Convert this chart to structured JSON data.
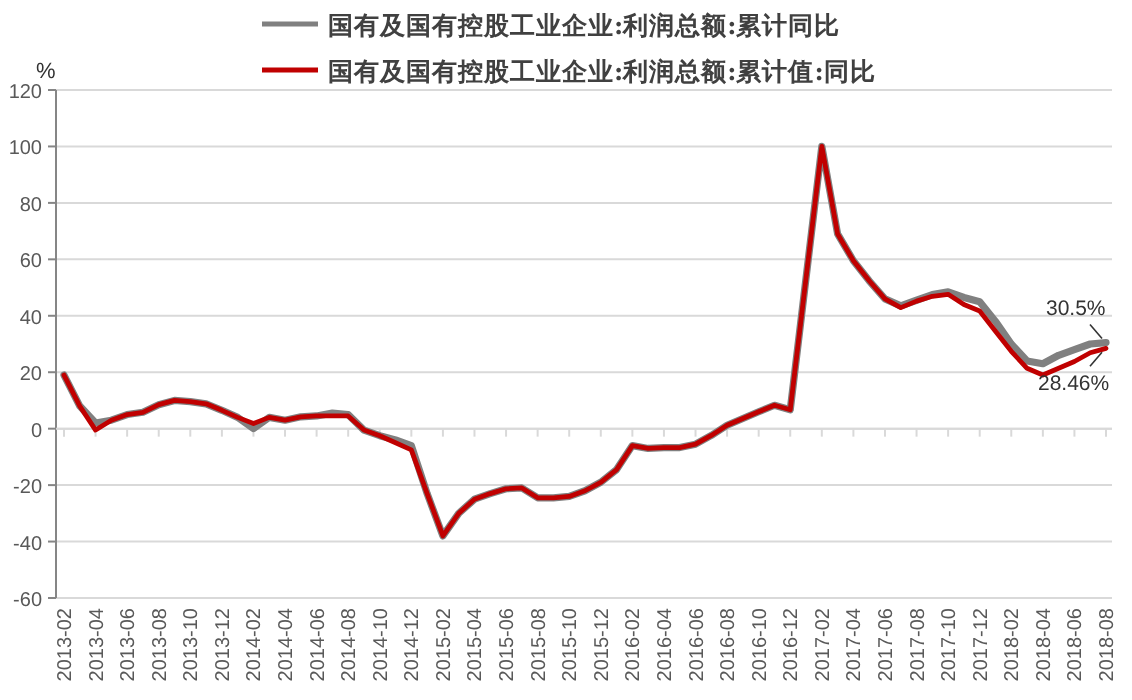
{
  "chart_data": {
    "type": "line",
    "ylabel": "%",
    "legend": "top",
    "grid": "y",
    "marker": "none",
    "line_style": "solid",
    "x": [
      "2013-02",
      "2013-03",
      "2013-04",
      "2013-05",
      "2013-06",
      "2013-07",
      "2013-08",
      "2013-09",
      "2013-10",
      "2013-11",
      "2013-12",
      "2014-01",
      "2014-02",
      "2014-03",
      "2014-04",
      "2014-05",
      "2014-06",
      "2014-07",
      "2014-08",
      "2014-09",
      "2014-10",
      "2014-11",
      "2014-12",
      "2015-01",
      "2015-02",
      "2015-03",
      "2015-04",
      "2015-05",
      "2015-06",
      "2015-07",
      "2015-08",
      "2015-09",
      "2015-10",
      "2015-11",
      "2015-12",
      "2016-01",
      "2016-02",
      "2016-03",
      "2016-04",
      "2016-05",
      "2016-06",
      "2016-07",
      "2016-08",
      "2016-09",
      "2016-10",
      "2016-11",
      "2016-12",
      "2017-02",
      "2017-03",
      "2017-04",
      "2017-05",
      "2017-06",
      "2017-07",
      "2017-08",
      "2017-09",
      "2017-10",
      "2017-11",
      "2017-12",
      "2018-01",
      "2018-02",
      "2018-03",
      "2018-04",
      "2018-05",
      "2018-06",
      "2018-07",
      "2018-08"
    ],
    "series": [
      {
        "name": "国有及国有控股工业企业:利润总额:累计同比",
        "color": "#808080",
        "values": [
          19,
          8,
          2,
          3,
          5,
          5.8,
          8.5,
          10,
          9.6,
          8.8,
          6.5,
          4,
          0,
          4,
          3,
          4.2,
          4.5,
          5.5,
          5,
          -0.5,
          -2.5,
          -4,
          -6,
          -23,
          -38,
          -30,
          -25,
          -23,
          -21.3,
          -21,
          -24.5,
          -24.5,
          -24,
          -22,
          -19,
          -14.5,
          -6,
          -7,
          -6.7,
          -6.7,
          -5.5,
          -2.4,
          1.2,
          3.6,
          6,
          8.3,
          6.7,
          100,
          69,
          59.5,
          52.4,
          46,
          43.5,
          45.5,
          47.5,
          48.5,
          46.5,
          45,
          38,
          30,
          24,
          23,
          26,
          28,
          30,
          30.5
        ]
      },
      {
        "name": "国有及国有控股工业企业:利润总额:累计值:同比",
        "color": "#c00000",
        "values": [
          19,
          8,
          -0.5,
          3,
          5,
          5.8,
          8.5,
          10,
          9.6,
          8.8,
          6.5,
          4,
          1.8,
          4,
          3,
          4.2,
          4.5,
          4.5,
          4.5,
          -0.5,
          -2.5,
          -5,
          -7.5,
          -23,
          -38,
          -30,
          -25,
          -23,
          -21.3,
          -21,
          -24.5,
          -24.5,
          -24,
          -22,
          -19,
          -14.5,
          -6,
          -7,
          -6.7,
          -6.7,
          -5.5,
          -2.4,
          1.2,
          3.6,
          6,
          8.3,
          6.7,
          100,
          69,
          59.5,
          52.4,
          46,
          42.9,
          45.2,
          46.9,
          47.6,
          44,
          41.7,
          34.5,
          27.4,
          21.4,
          19,
          21.4,
          23.8,
          26.9,
          28.46
        ]
      }
    ],
    "xlim": [
      "2013-02",
      "2018-08"
    ],
    "xticks": [
      "2013-02",
      "2013-04",
      "2013-06",
      "2013-08",
      "2013-10",
      "2013-12",
      "2014-02",
      "2014-04",
      "2014-06",
      "2014-08",
      "2014-10",
      "2014-12",
      "2015-02",
      "2015-04",
      "2015-06",
      "2015-08",
      "2015-10",
      "2015-12",
      "2016-02",
      "2016-04",
      "2016-06",
      "2016-08",
      "2016-10",
      "2016-12",
      "2017-02",
      "2017-04",
      "2017-06",
      "2017-08",
      "2017-10",
      "2017-12",
      "2018-02",
      "2018-04",
      "2018-06",
      "2018-08"
    ],
    "ylim": [
      -60,
      120
    ],
    "yticks": [
      -60,
      -40,
      -20,
      0,
      20,
      40,
      60,
      80,
      100,
      120
    ],
    "annotations": [
      {
        "text": "30.5%",
        "x": "2018-08",
        "y": 30.5
      },
      {
        "text": "28.46%",
        "x": "2018-08",
        "y": 28.46
      }
    ]
  }
}
